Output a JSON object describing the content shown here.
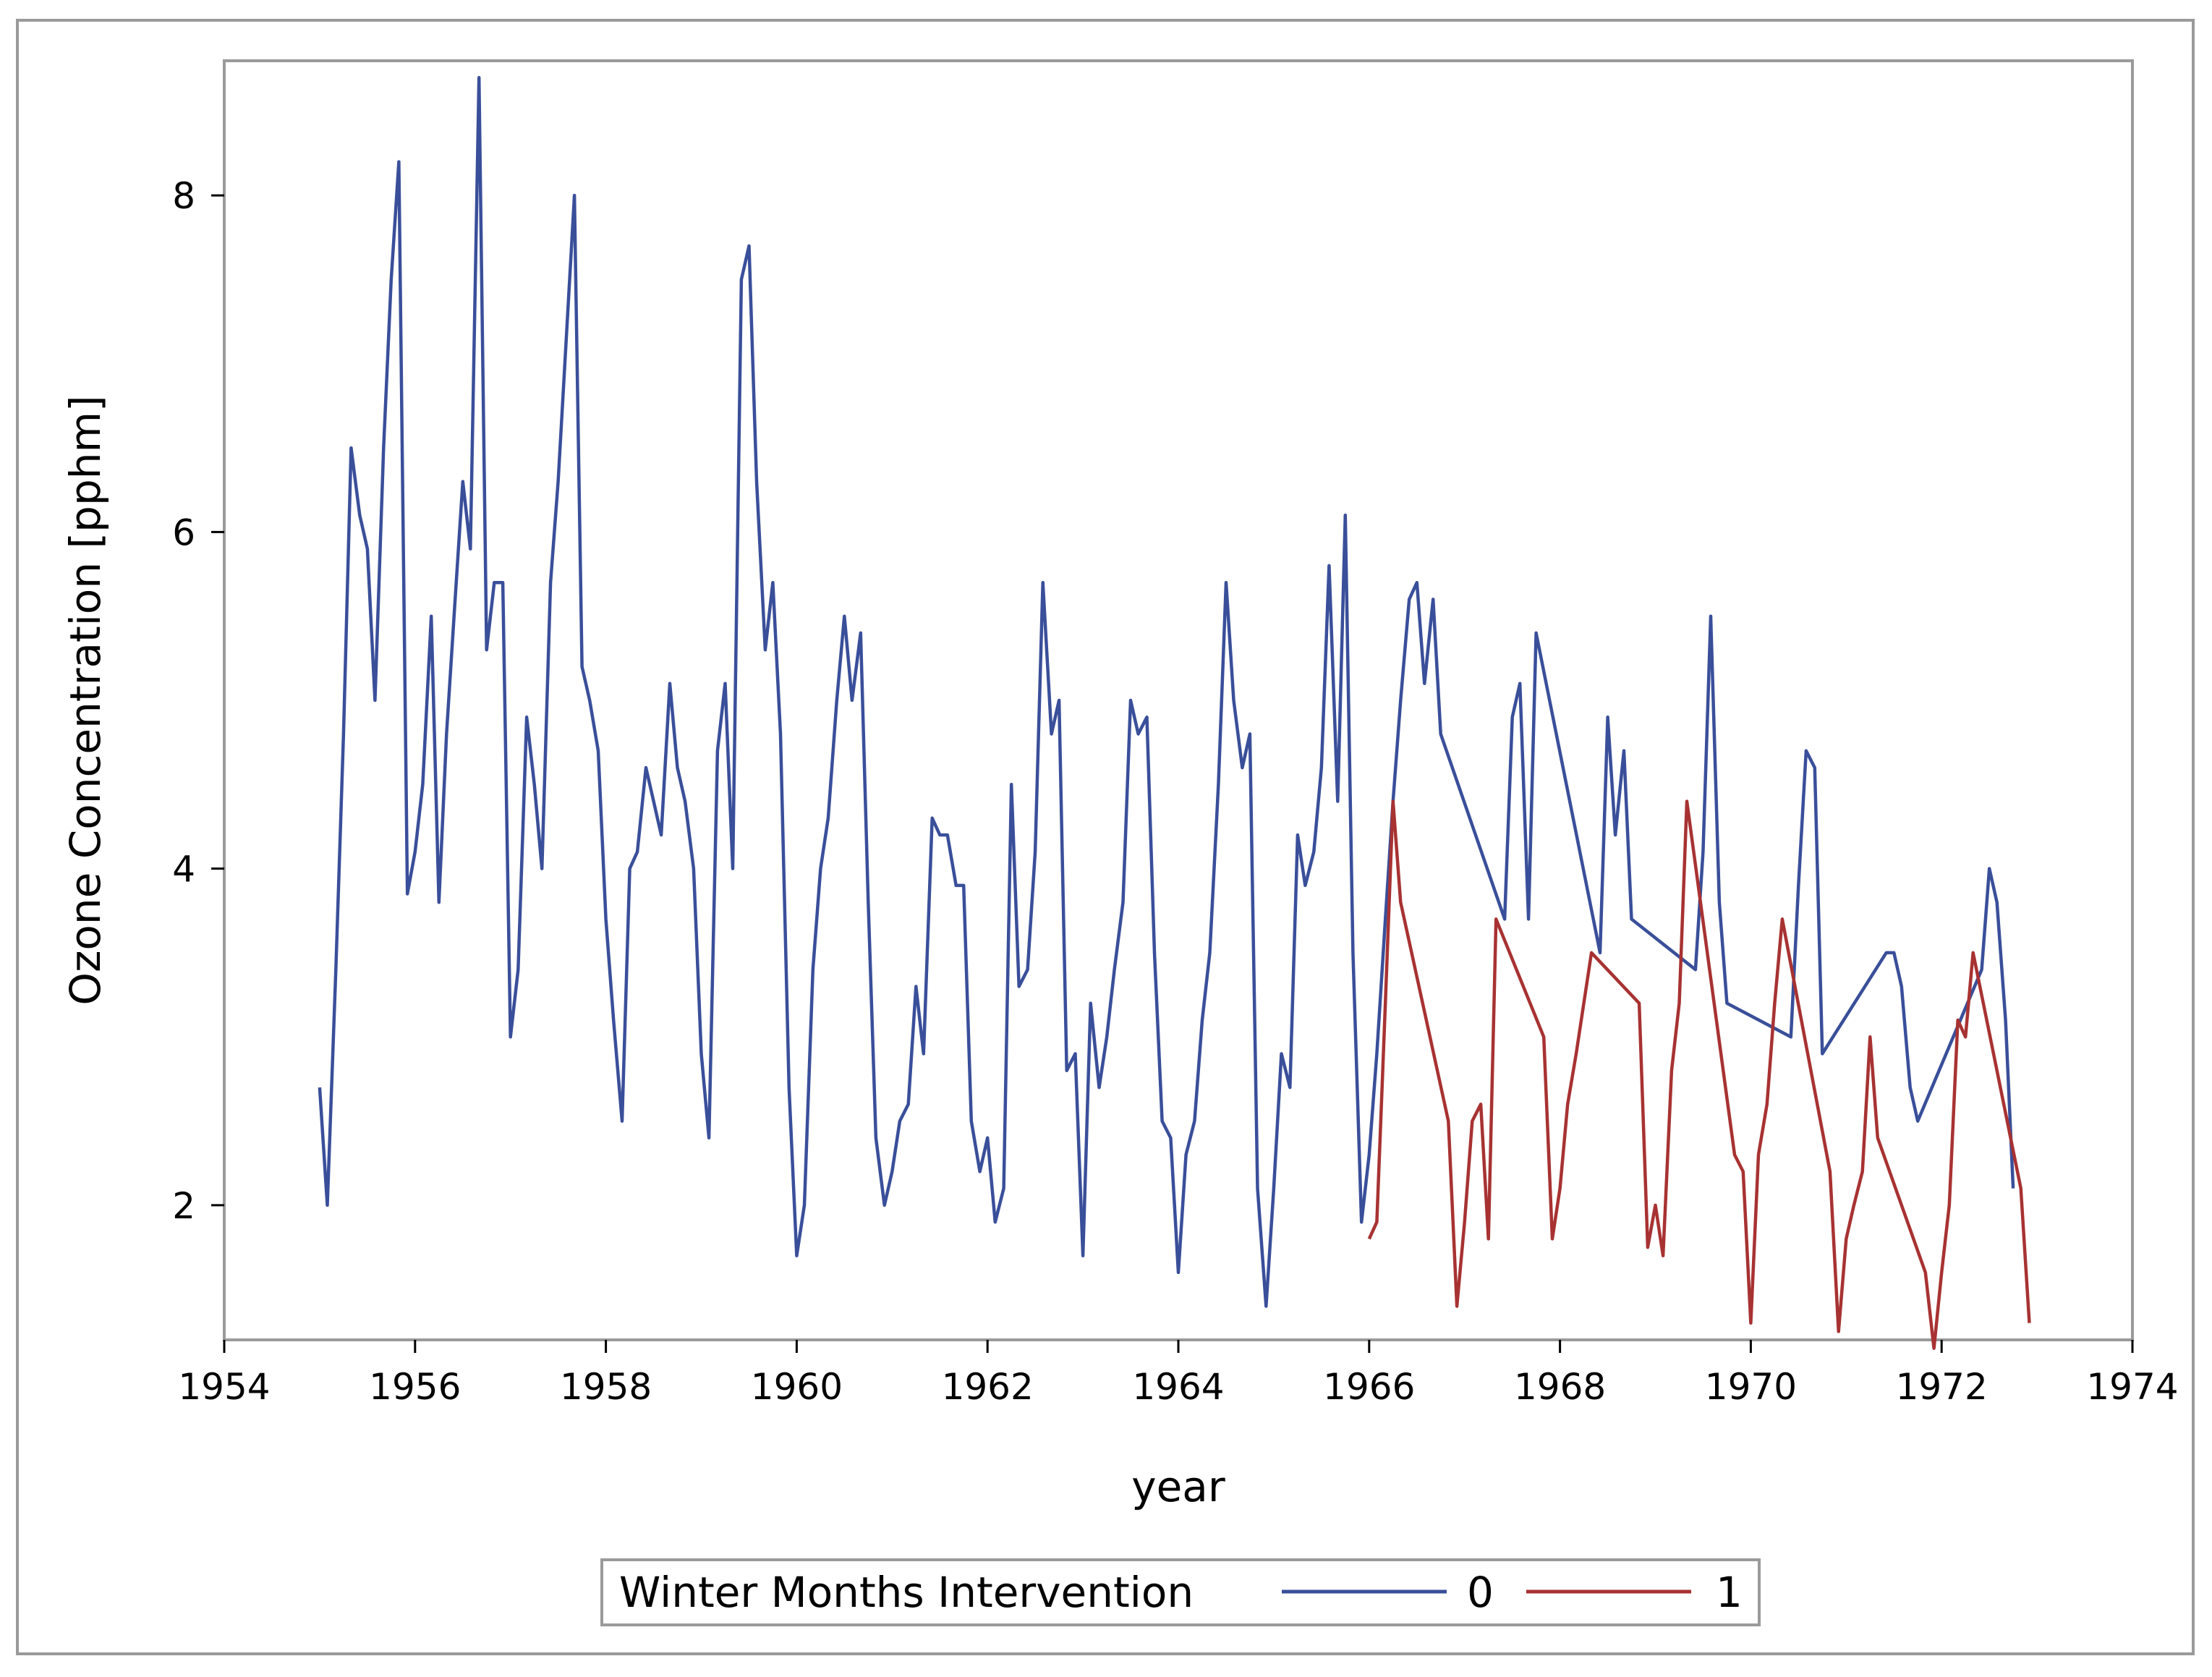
{
  "chart_data": {
    "type": "line",
    "title": "",
    "xlabel": "year",
    "ylabel": "Ozone Concentration [pphm]",
    "xlim": [
      1954,
      1974
    ],
    "ylim": [
      1.2,
      8.8
    ],
    "x_ticks": [
      "1954",
      "1956",
      "1958",
      "1960",
      "1962",
      "1964",
      "1966",
      "1968",
      "1970",
      "1972",
      "1974"
    ],
    "y_ticks": [
      "2",
      "4",
      "6",
      "8"
    ],
    "legend": {
      "title": "Winter Months Intervention",
      "placement": "bottom-center"
    },
    "series": [
      {
        "name": "0",
        "color": "#3a4f9a",
        "points": [
          [
            1955.0,
            2.7
          ],
          [
            1955.08,
            2.0
          ],
          [
            1955.17,
            3.4
          ],
          [
            1955.25,
            4.8
          ],
          [
            1955.33,
            6.5
          ],
          [
            1955.42,
            6.1
          ],
          [
            1955.5,
            5.9
          ],
          [
            1955.58,
            5.0
          ],
          [
            1955.67,
            6.5
          ],
          [
            1955.75,
            7.5
          ],
          [
            1955.83,
            8.2
          ],
          [
            1955.92,
            3.85
          ],
          [
            1956.0,
            4.1
          ],
          [
            1956.08,
            4.5
          ],
          [
            1956.17,
            5.5
          ],
          [
            1956.25,
            3.8
          ],
          [
            1956.33,
            4.8
          ],
          [
            1956.42,
            5.6
          ],
          [
            1956.5,
            6.3
          ],
          [
            1956.58,
            5.9
          ],
          [
            1956.67,
            8.7
          ],
          [
            1956.75,
            5.3
          ],
          [
            1956.83,
            5.7
          ],
          [
            1956.92,
            5.7
          ],
          [
            1957.0,
            3.0
          ],
          [
            1957.08,
            3.4
          ],
          [
            1957.17,
            4.9
          ],
          [
            1957.25,
            4.5
          ],
          [
            1957.33,
            4.0
          ],
          [
            1957.42,
            5.7
          ],
          [
            1957.5,
            6.3
          ],
          [
            1957.58,
            7.1
          ],
          [
            1957.67,
            8.0
          ],
          [
            1957.75,
            5.2
          ],
          [
            1957.83,
            5.0
          ],
          [
            1957.92,
            4.7
          ],
          [
            1958.0,
            3.7
          ],
          [
            1958.08,
            3.1
          ],
          [
            1958.17,
            2.5
          ],
          [
            1958.25,
            4.0
          ],
          [
            1958.33,
            4.1
          ],
          [
            1958.42,
            4.6
          ],
          [
            1958.5,
            4.4
          ],
          [
            1958.58,
            4.2
          ],
          [
            1958.67,
            5.1
          ],
          [
            1958.75,
            4.6
          ],
          [
            1958.83,
            4.4
          ],
          [
            1958.92,
            4.0
          ],
          [
            1959.0,
            2.9
          ],
          [
            1959.08,
            2.4
          ],
          [
            1959.17,
            4.7
          ],
          [
            1959.25,
            5.1
          ],
          [
            1959.33,
            4.0
          ],
          [
            1959.42,
            7.5
          ],
          [
            1959.5,
            7.7
          ],
          [
            1959.58,
            6.3
          ],
          [
            1959.67,
            5.3
          ],
          [
            1959.75,
            5.7
          ],
          [
            1959.83,
            4.8
          ],
          [
            1959.92,
            2.7
          ],
          [
            1960.0,
            1.7
          ],
          [
            1960.08,
            2.0
          ],
          [
            1960.17,
            3.4
          ],
          [
            1960.25,
            4.0
          ],
          [
            1960.33,
            4.3
          ],
          [
            1960.42,
            5.0
          ],
          [
            1960.5,
            5.5
          ],
          [
            1960.58,
            5.0
          ],
          [
            1960.67,
            5.4
          ],
          [
            1960.75,
            3.8
          ],
          [
            1960.83,
            2.4
          ],
          [
            1960.92,
            2.0
          ],
          [
            1961.0,
            2.2
          ],
          [
            1961.08,
            2.5
          ],
          [
            1961.17,
            2.6
          ],
          [
            1961.25,
            3.3
          ],
          [
            1961.33,
            2.9
          ],
          [
            1961.42,
            4.3
          ],
          [
            1961.5,
            4.2
          ],
          [
            1961.58,
            4.2
          ],
          [
            1961.67,
            3.9
          ],
          [
            1961.75,
            3.9
          ],
          [
            1961.83,
            2.5
          ],
          [
            1961.92,
            2.2
          ],
          [
            1962.0,
            2.4
          ],
          [
            1962.08,
            1.9
          ],
          [
            1962.17,
            2.1
          ],
          [
            1962.25,
            4.5
          ],
          [
            1962.33,
            3.3
          ],
          [
            1962.42,
            3.4
          ],
          [
            1962.5,
            4.1
          ],
          [
            1962.58,
            5.7
          ],
          [
            1962.67,
            4.8
          ],
          [
            1962.75,
            5.0
          ],
          [
            1962.83,
            2.8
          ],
          [
            1962.92,
            2.9
          ],
          [
            1963.0,
            1.7
          ],
          [
            1963.08,
            3.2
          ],
          [
            1963.17,
            2.7
          ],
          [
            1963.25,
            3.0
          ],
          [
            1963.33,
            3.4
          ],
          [
            1963.42,
            3.8
          ],
          [
            1963.5,
            5.0
          ],
          [
            1963.58,
            4.8
          ],
          [
            1963.67,
            4.9
          ],
          [
            1963.75,
            3.5
          ],
          [
            1963.83,
            2.5
          ],
          [
            1963.92,
            2.4
          ],
          [
            1964.0,
            1.6
          ],
          [
            1964.08,
            2.3
          ],
          [
            1964.17,
            2.5
          ],
          [
            1964.25,
            3.1
          ],
          [
            1964.33,
            3.5
          ],
          [
            1964.42,
            4.5
          ],
          [
            1964.5,
            5.7
          ],
          [
            1964.58,
            5.0
          ],
          [
            1964.67,
            4.6
          ],
          [
            1964.75,
            4.8
          ],
          [
            1964.83,
            2.1
          ],
          [
            1964.92,
            1.4
          ],
          [
            1965.0,
            2.1
          ],
          [
            1965.08,
            2.9
          ],
          [
            1965.17,
            2.7
          ],
          [
            1965.25,
            4.2
          ],
          [
            1965.33,
            3.9
          ],
          [
            1965.42,
            4.1
          ],
          [
            1965.5,
            4.6
          ],
          [
            1965.58,
            5.8
          ],
          [
            1965.67,
            4.4
          ],
          [
            1965.75,
            6.1
          ],
          [
            1965.83,
            3.5
          ],
          [
            1965.92,
            1.9
          ],
          [
            1966.0,
            2.3
          ],
          [
            1966.08,
            2.9
          ],
          [
            1966.17,
            3.7
          ],
          [
            1966.25,
            4.4
          ],
          [
            1966.33,
            5.0
          ],
          [
            1966.42,
            5.6
          ],
          [
            1966.5,
            5.7
          ],
          [
            1966.58,
            5.1
          ],
          [
            1966.67,
            5.6
          ],
          [
            1966.75,
            4.8
          ],
          [
            1967.42,
            3.7
          ],
          [
            1967.5,
            4.9
          ],
          [
            1967.58,
            5.1
          ],
          [
            1967.67,
            3.7
          ],
          [
            1967.75,
            5.4
          ],
          [
            1968.42,
            3.5
          ],
          [
            1968.5,
            4.9
          ],
          [
            1968.58,
            4.2
          ],
          [
            1968.67,
            4.7
          ],
          [
            1968.75,
            3.7
          ],
          [
            1969.42,
            3.4
          ],
          [
            1969.5,
            4.1
          ],
          [
            1969.58,
            5.5
          ],
          [
            1969.67,
            3.8
          ],
          [
            1969.75,
            3.2
          ],
          [
            1970.42,
            3.0
          ],
          [
            1970.5,
            3.9
          ],
          [
            1970.58,
            4.7
          ],
          [
            1970.67,
            4.6
          ],
          [
            1970.75,
            2.9
          ],
          [
            1971.42,
            3.5
          ],
          [
            1971.5,
            3.5
          ],
          [
            1971.58,
            3.3
          ],
          [
            1971.67,
            2.7
          ],
          [
            1971.75,
            2.5
          ],
          [
            1972.42,
            3.4
          ],
          [
            1972.5,
            4.0
          ],
          [
            1972.58,
            3.8
          ],
          [
            1972.67,
            3.1
          ],
          [
            1972.75,
            2.1
          ]
        ]
      },
      {
        "name": "1",
        "color": "#a83232",
        "points": [
          [
            1966.0,
            1.8
          ],
          [
            1966.08,
            1.9
          ],
          [
            1966.17,
            3.2
          ],
          [
            1966.25,
            4.4
          ],
          [
            1966.33,
            3.8
          ],
          [
            1966.83,
            2.5
          ],
          [
            1966.92,
            1.4
          ],
          [
            1967.0,
            1.9
          ],
          [
            1967.08,
            2.5
          ],
          [
            1967.17,
            2.6
          ],
          [
            1967.25,
            1.8
          ],
          [
            1967.33,
            3.7
          ],
          [
            1967.83,
            3.0
          ],
          [
            1967.92,
            1.8
          ],
          [
            1968.0,
            2.1
          ],
          [
            1968.08,
            2.6
          ],
          [
            1968.17,
            2.9
          ],
          [
            1968.33,
            3.5
          ],
          [
            1968.83,
            3.2
          ],
          [
            1968.92,
            1.75
          ],
          [
            1969.0,
            2.0
          ],
          [
            1969.08,
            1.7
          ],
          [
            1969.17,
            2.8
          ],
          [
            1969.25,
            3.2
          ],
          [
            1969.33,
            4.4
          ],
          [
            1969.83,
            2.3
          ],
          [
            1969.92,
            2.2
          ],
          [
            1970.0,
            1.3
          ],
          [
            1970.08,
            2.3
          ],
          [
            1970.17,
            2.6
          ],
          [
            1970.25,
            3.2
          ],
          [
            1970.33,
            3.7
          ],
          [
            1970.83,
            2.2
          ],
          [
            1970.92,
            1.25
          ],
          [
            1971.0,
            1.8
          ],
          [
            1971.08,
            2.0
          ],
          [
            1971.17,
            2.2
          ],
          [
            1971.25,
            3.0
          ],
          [
            1971.33,
            2.4
          ],
          [
            1971.83,
            1.6
          ],
          [
            1971.92,
            1.15
          ],
          [
            1972.0,
            1.6
          ],
          [
            1972.08,
            2.0
          ],
          [
            1972.17,
            3.1
          ],
          [
            1972.25,
            3.0
          ],
          [
            1972.33,
            3.5
          ],
          [
            1972.83,
            2.1
          ],
          [
            1972.92,
            1.3
          ]
        ]
      }
    ]
  }
}
